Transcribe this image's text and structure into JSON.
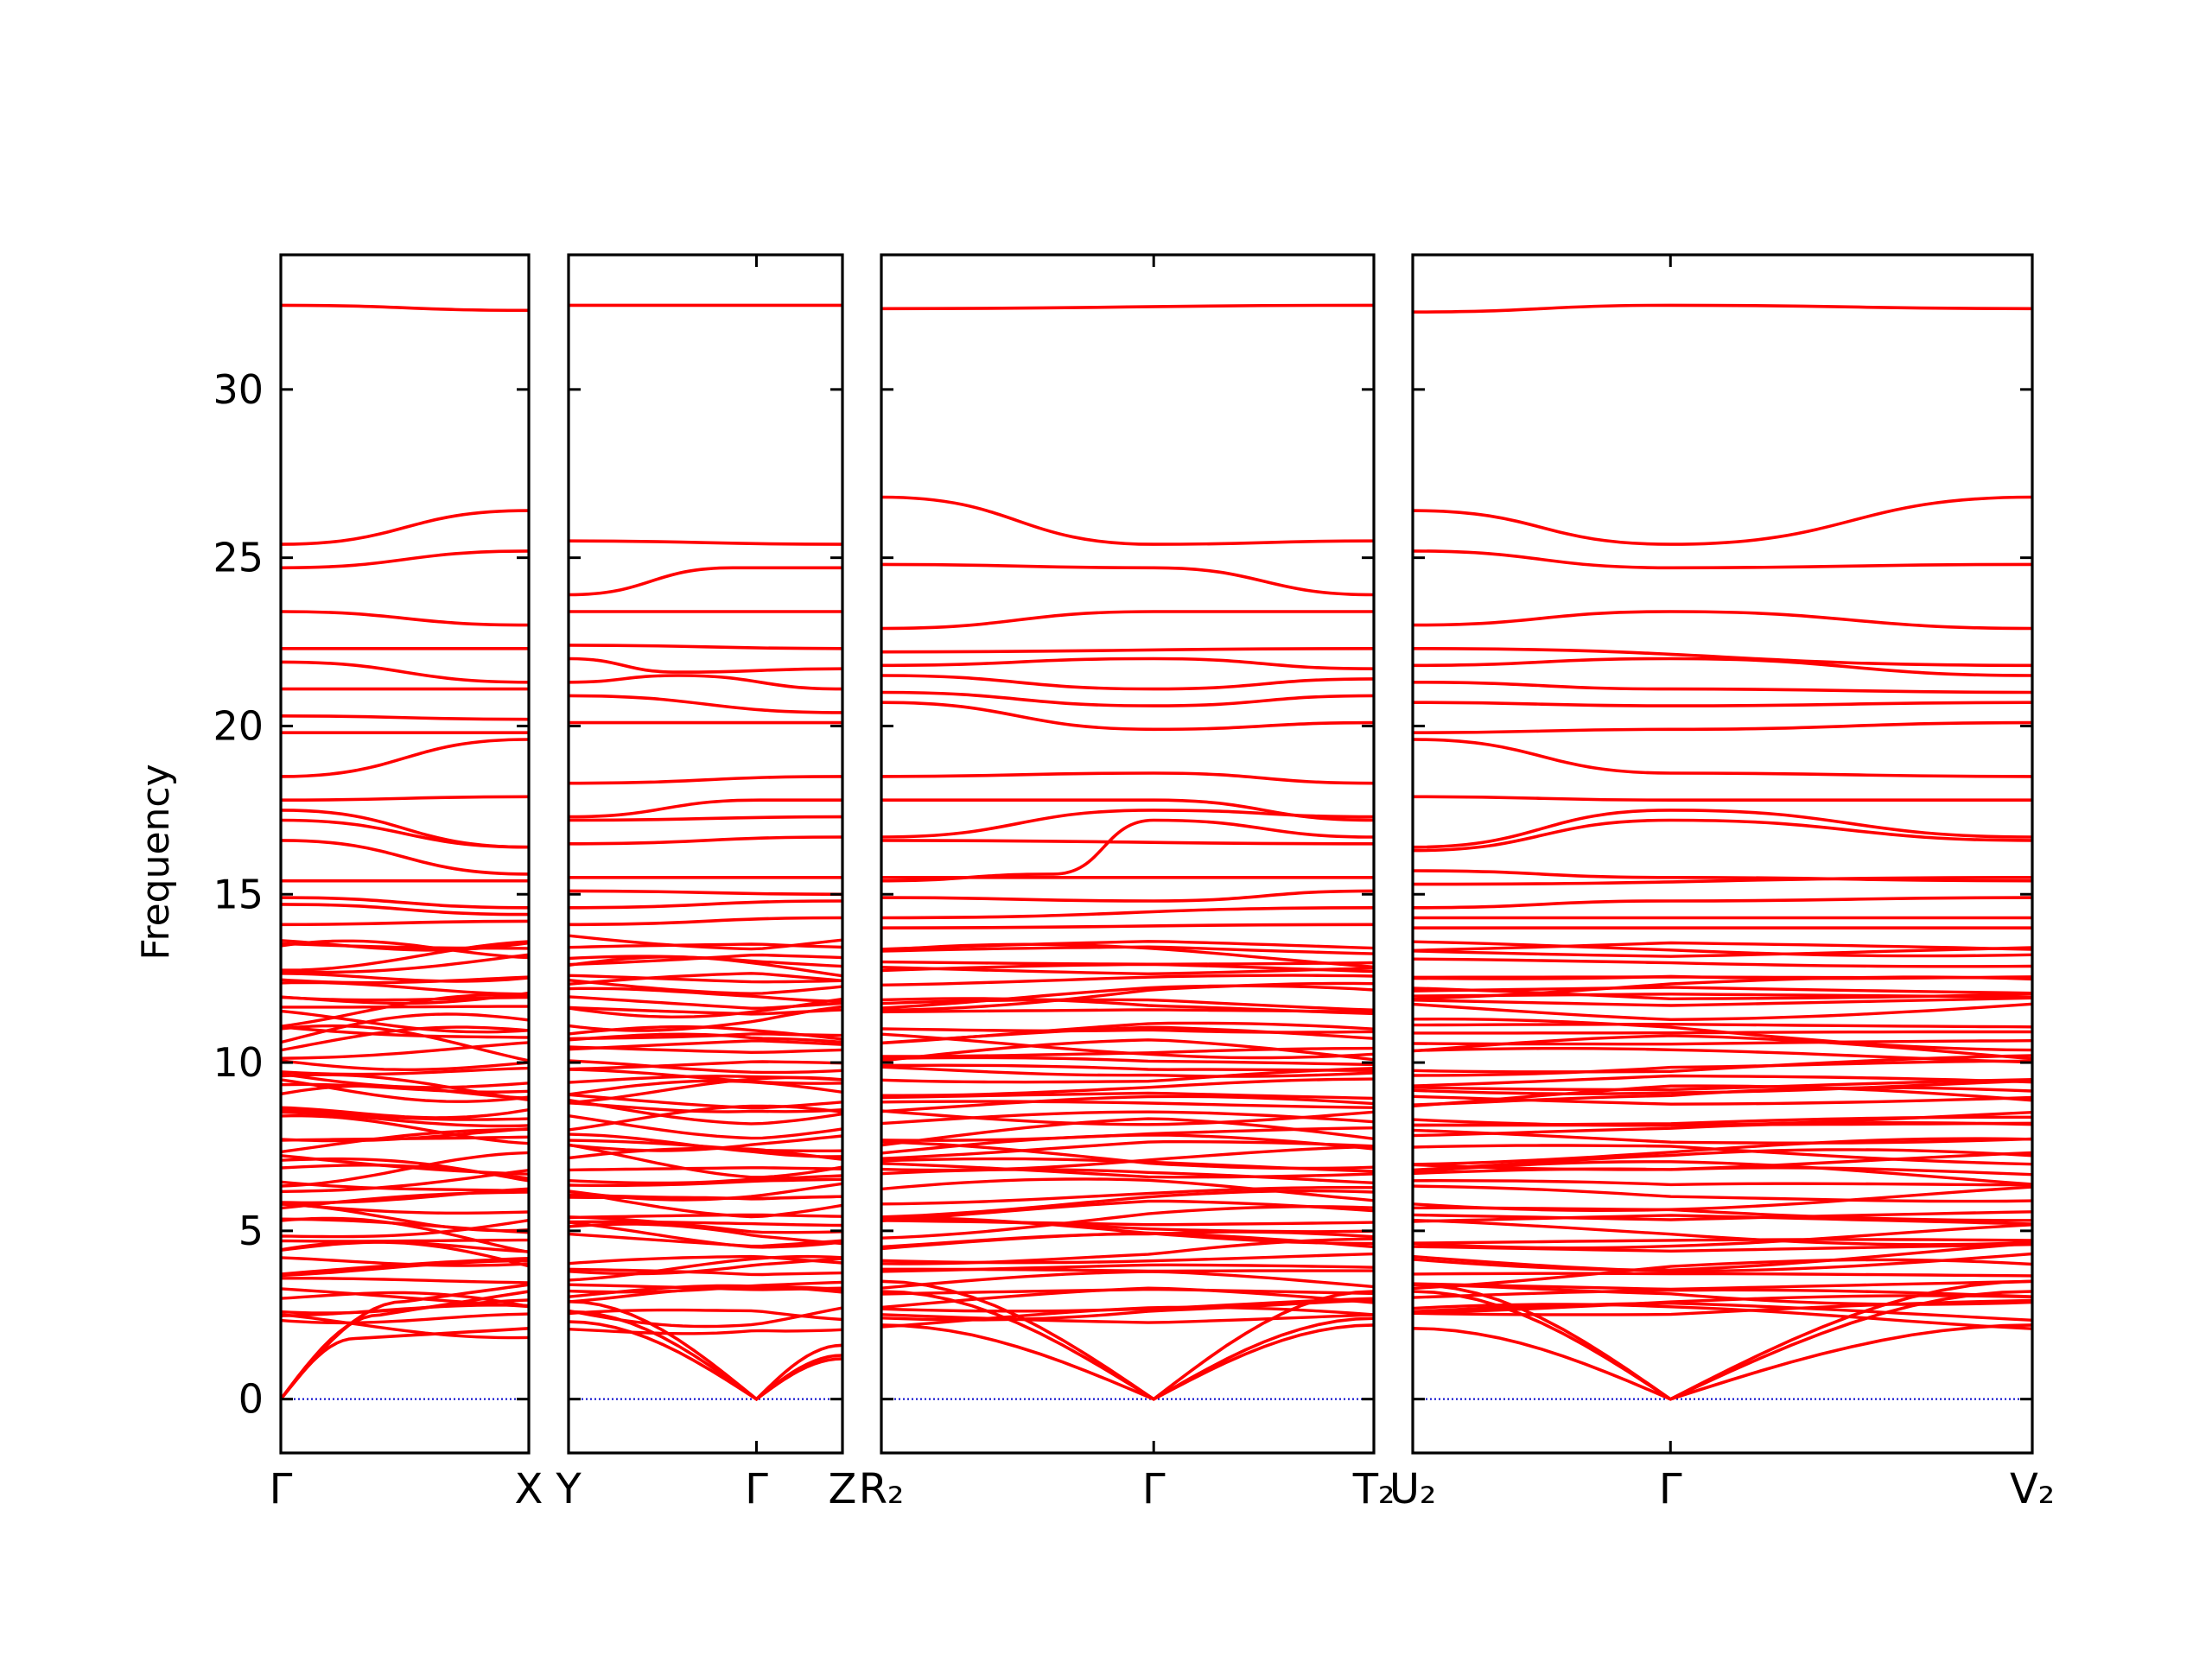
{
  "chart_data": {
    "type": "line",
    "title": "",
    "ylabel": "Frequency",
    "ylim": [
      -1.6,
      34
    ],
    "yticks": [
      0,
      5,
      10,
      15,
      20,
      25,
      30
    ],
    "ytick_labels": [
      "0",
      "5",
      "10",
      "15",
      "20",
      "25",
      "30"
    ],
    "grid": false,
    "colors": {
      "bands": "#ff0000",
      "zero_line": "#0000cc",
      "axes": "#000000"
    },
    "panels": [
      {
        "id": "gamma-x",
        "kpath_labels": [
          "Γ",
          "X"
        ],
        "kpath_positions": [
          0,
          1
        ],
        "top_bands": [
          {
            "x": [
              0,
              1
            ],
            "y": [
              32.5,
              32.35
            ]
          },
          {
            "x": [
              0,
              1
            ],
            "y": [
              25.4,
              26.4
            ]
          },
          {
            "x": [
              0,
              1
            ],
            "y": [
              24.7,
              25.2
            ]
          },
          {
            "x": [
              0,
              1
            ],
            "y": [
              23.4,
              23.0
            ]
          },
          {
            "x": [
              0,
              1
            ],
            "y": [
              22.3,
              22.3
            ]
          },
          {
            "x": [
              0,
              1
            ],
            "y": [
              21.9,
              21.3
            ]
          },
          {
            "x": [
              0,
              1
            ],
            "y": [
              21.1,
              21.1
            ]
          },
          {
            "x": [
              0,
              1
            ],
            "y": [
              20.3,
              20.2
            ]
          },
          {
            "x": [
              0,
              1
            ],
            "y": [
              19.8,
              19.8
            ]
          },
          {
            "x": [
              0,
              1
            ],
            "y": [
              18.5,
              19.6
            ]
          },
          {
            "x": [
              0,
              1
            ],
            "y": [
              17.8,
              17.9
            ]
          },
          {
            "x": [
              0,
              1
            ],
            "y": [
              17.5,
              16.4
            ]
          },
          {
            "x": [
              0,
              1
            ],
            "y": [
              17.2,
              16.4
            ]
          },
          {
            "x": [
              0,
              1
            ],
            "y": [
              16.6,
              15.6
            ]
          },
          {
            "x": [
              0,
              1
            ],
            "y": [
              15.4,
              15.4
            ]
          },
          {
            "x": [
              0,
              1
            ],
            "y": [
              14.9,
              14.6
            ]
          },
          {
            "x": [
              0,
              1
            ],
            "y": [
              14.7,
              14.4
            ]
          },
          {
            "x": [
              0,
              1
            ],
            "y": [
              14.1,
              14.2
            ]
          }
        ],
        "acoustic": [
          {
            "x": [
              0,
              0.3,
              1
            ],
            "y": [
              0,
              1.8,
              2.1
            ]
          },
          {
            "x": [
              0,
              0.4,
              1
            ],
            "y": [
              0,
              2.5,
              3.2
            ]
          },
          {
            "x": [
              0,
              0.5,
              1
            ],
            "y": [
              0,
              2.9,
              3.4
            ]
          }
        ],
        "dense_band_range": [
          2.2,
          13.7
        ],
        "dense_band_count": 58
      },
      {
        "id": "y-gamma-z",
        "kpath_labels": [
          "Y",
          "Γ",
          "Z"
        ],
        "kpath_positions": [
          0,
          0.686,
          1
        ],
        "top_bands": [
          {
            "x": [
              0,
              1
            ],
            "y": [
              32.5,
              32.5
            ]
          },
          {
            "x": [
              0,
              1
            ],
            "y": [
              25.5,
              25.4
            ]
          },
          {
            "x": [
              0,
              0.6,
              1
            ],
            "y": [
              23.9,
              24.7,
              24.7
            ]
          },
          {
            "x": [
              0,
              1
            ],
            "y": [
              23.4,
              23.4
            ]
          },
          {
            "x": [
              0,
              1
            ],
            "y": [
              22.4,
              22.3
            ]
          },
          {
            "x": [
              0,
              0.4,
              1
            ],
            "y": [
              22.0,
              21.6,
              21.7
            ]
          },
          {
            "x": [
              0,
              0.4,
              1
            ],
            "y": [
              21.3,
              21.5,
              21.1
            ]
          },
          {
            "x": [
              0,
              1
            ],
            "y": [
              20.9,
              20.4
            ]
          },
          {
            "x": [
              0,
              1
            ],
            "y": [
              20.1,
              20.1
            ]
          },
          {
            "x": [
              0,
              1
            ],
            "y": [
              18.3,
              18.5
            ]
          },
          {
            "x": [
              0,
              0.7,
              1
            ],
            "y": [
              17.3,
              17.8,
              17.8
            ]
          },
          {
            "x": [
              0,
              1
            ],
            "y": [
              17.2,
              17.3
            ]
          },
          {
            "x": [
              0,
              1
            ],
            "y": [
              16.5,
              16.7
            ]
          },
          {
            "x": [
              0,
              1
            ],
            "y": [
              15.5,
              15.5
            ]
          },
          {
            "x": [
              0,
              1
            ],
            "y": [
              15.1,
              15.0
            ]
          },
          {
            "x": [
              0,
              1
            ],
            "y": [
              14.6,
              14.8
            ]
          },
          {
            "x": [
              0,
              1
            ],
            "y": [
              14.1,
              14.3
            ]
          }
        ],
        "acoustic": [
          {
            "x": [
              0,
              0.686,
              1
            ],
            "y": [
              2.3,
              0,
              1.6
            ]
          },
          {
            "x": [
              0,
              0.686,
              1
            ],
            "y": [
              2.6,
              0,
              1.3
            ]
          },
          {
            "x": [
              0,
              0.686,
              1
            ],
            "y": [
              2.9,
              0,
              1.2
            ]
          }
        ],
        "dense_band_range": [
          2.2,
          13.7
        ],
        "dense_band_count": 58
      },
      {
        "id": "r2-gamma-t2",
        "kpath_labels": [
          "R₂",
          "Γ",
          "T₂"
        ],
        "kpath_positions": [
          0,
          0.553,
          1
        ],
        "top_bands": [
          {
            "x": [
              0,
              1
            ],
            "y": [
              32.4,
              32.5
            ]
          },
          {
            "x": [
              0,
              0.553,
              1
            ],
            "y": [
              26.8,
              25.4,
              25.5
            ]
          },
          {
            "x": [
              0,
              0.553,
              1
            ],
            "y": [
              24.8,
              24.7,
              23.9
            ]
          },
          {
            "x": [
              0,
              0.553,
              1
            ],
            "y": [
              22.9,
              23.4,
              23.4
            ]
          },
          {
            "x": [
              0,
              1
            ],
            "y": [
              22.2,
              22.3
            ]
          },
          {
            "x": [
              0,
              0.553,
              1
            ],
            "y": [
              21.8,
              22.0,
              21.7
            ]
          },
          {
            "x": [
              0,
              0.553,
              1
            ],
            "y": [
              21.5,
              21.1,
              21.4
            ]
          },
          {
            "x": [
              0,
              0.553,
              1
            ],
            "y": [
              21.0,
              20.6,
              20.9
            ]
          },
          {
            "x": [
              0,
              0.553,
              1
            ],
            "y": [
              20.7,
              19.9,
              20.1
            ]
          },
          {
            "x": [
              0,
              0.553,
              1
            ],
            "y": [
              18.5,
              18.6,
              18.3
            ]
          },
          {
            "x": [
              0,
              0.553,
              1
            ],
            "y": [
              17.8,
              17.8,
              17.2
            ]
          },
          {
            "x": [
              0,
              0.553,
              1
            ],
            "y": [
              16.7,
              17.5,
              17.3
            ]
          },
          {
            "x": [
              0,
              0.35,
              0.553,
              1
            ],
            "y": [
              15.4,
              15.6,
              17.2,
              16.7
            ]
          },
          {
            "x": [
              0,
              1
            ],
            "y": [
              16.6,
              16.5
            ]
          },
          {
            "x": [
              0,
              1
            ],
            "y": [
              15.5,
              15.5
            ]
          },
          {
            "x": [
              0,
              0.553,
              1
            ],
            "y": [
              14.9,
              14.8,
              15.1
            ]
          },
          {
            "x": [
              0,
              1
            ],
            "y": [
              14.3,
              14.6
            ]
          },
          {
            "x": [
              0,
              1
            ],
            "y": [
              14.0,
              14.1
            ]
          }
        ],
        "acoustic": [
          {
            "x": [
              0,
              0.553,
              1
            ],
            "y": [
              2.2,
              0,
              2.2
            ]
          },
          {
            "x": [
              0,
              0.553,
              1
            ],
            "y": [
              3.2,
              0,
              2.4
            ]
          },
          {
            "x": [
              0,
              0.553,
              1
            ],
            "y": [
              3.5,
              0,
              3.2
            ]
          }
        ],
        "dense_band_range": [
          2.2,
          13.7
        ],
        "dense_band_count": 58
      },
      {
        "id": "u2-gamma-v2",
        "kpath_labels": [
          "U₂",
          "Γ",
          "V₂"
        ],
        "kpath_positions": [
          0,
          0.416,
          1
        ],
        "top_bands": [
          {
            "x": [
              0,
              0.416,
              1
            ],
            "y": [
              32.3,
              32.5,
              32.4
            ]
          },
          {
            "x": [
              0,
              0.416,
              1
            ],
            "y": [
              26.4,
              25.4,
              26.8
            ]
          },
          {
            "x": [
              0,
              0.416,
              1
            ],
            "y": [
              25.2,
              24.7,
              24.8
            ]
          },
          {
            "x": [
              0,
              0.416,
              1
            ],
            "y": [
              23.0,
              23.4,
              22.9
            ]
          },
          {
            "x": [
              0,
              1
            ],
            "y": [
              22.3,
              21.8
            ]
          },
          {
            "x": [
              0,
              0.416,
              1
            ],
            "y": [
              21.8,
              22.0,
              21.5
            ]
          },
          {
            "x": [
              0,
              0.416,
              1
            ],
            "y": [
              21.3,
              21.1,
              21.0
            ]
          },
          {
            "x": [
              0,
              0.416,
              1
            ],
            "y": [
              20.7,
              20.6,
              20.7
            ]
          },
          {
            "x": [
              0,
              0.416,
              1
            ],
            "y": [
              19.8,
              19.9,
              20.1
            ]
          },
          {
            "x": [
              0,
              0.416,
              1
            ],
            "y": [
              19.6,
              18.6,
              18.5
            ]
          },
          {
            "x": [
              0,
              0.416,
              1
            ],
            "y": [
              17.9,
              17.8,
              17.8
            ]
          },
          {
            "x": [
              0,
              0.416,
              1
            ],
            "y": [
              16.4,
              17.5,
              16.7
            ]
          },
          {
            "x": [
              0,
              0.416,
              1
            ],
            "y": [
              16.3,
              17.2,
              16.6
            ]
          },
          {
            "x": [
              0,
              0.416,
              1
            ],
            "y": [
              15.7,
              15.5,
              15.4
            ]
          },
          {
            "x": [
              0,
              1
            ],
            "y": [
              15.3,
              15.5
            ]
          },
          {
            "x": [
              0,
              0.416,
              1
            ],
            "y": [
              14.6,
              14.8,
              14.9
            ]
          },
          {
            "x": [
              0,
              1
            ],
            "y": [
              14.3,
              14.3
            ]
          },
          {
            "x": [
              0,
              1
            ],
            "y": [
              14.0,
              14.0
            ]
          }
        ],
        "acoustic": [
          {
            "x": [
              0,
              0.416,
              1
            ],
            "y": [
              2.1,
              0,
              2.2
            ]
          },
          {
            "x": [
              0,
              0.416,
              1
            ],
            "y": [
              3.2,
              0,
              3.2
            ]
          },
          {
            "x": [
              0,
              0.416,
              1
            ],
            "y": [
              3.4,
              0,
              3.5
            ]
          }
        ],
        "dense_band_range": [
          2.2,
          13.7
        ],
        "dense_band_count": 58
      }
    ]
  }
}
